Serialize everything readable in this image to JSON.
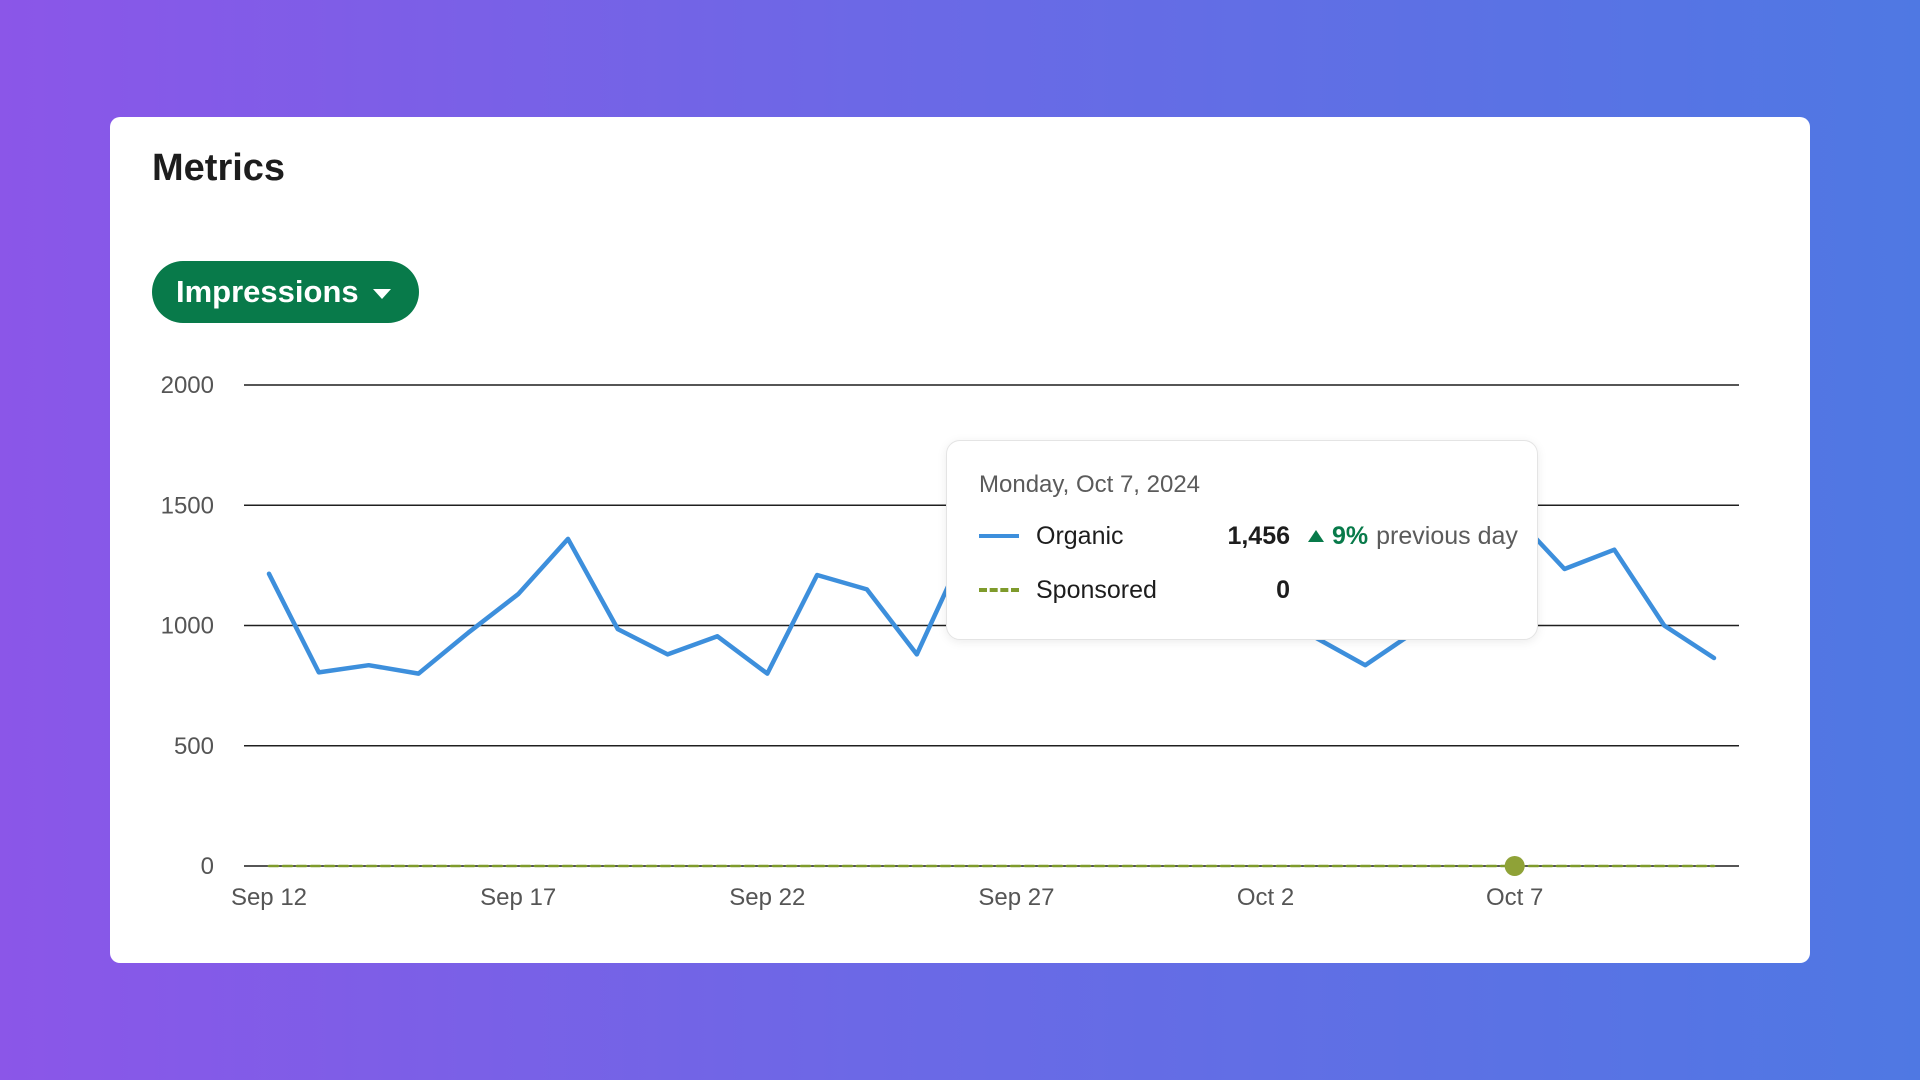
{
  "card": {
    "title": "Metrics",
    "metric_selector": {
      "label": "Impressions",
      "icon": "chevron-down-icon"
    }
  },
  "tooltip": {
    "date": "Monday, Oct 7, 2024",
    "rows": [
      {
        "name": "Organic",
        "value": "1,456",
        "change": "9%",
        "change_direction": "up",
        "comparison": "previous day"
      },
      {
        "name": "Sponsored",
        "value": "0"
      }
    ]
  },
  "chart_data": {
    "type": "line",
    "x": [
      "Sep 12",
      "Sep 13",
      "Sep 14",
      "Sep 15",
      "Sep 16",
      "Sep 17",
      "Sep 18",
      "Sep 19",
      "Sep 20",
      "Sep 21",
      "Sep 22",
      "Sep 23",
      "Sep 24",
      "Sep 25",
      "Sep 26",
      "Sep 27",
      "Sep 28",
      "Sep 29",
      "Sep 30",
      "Oct 1",
      "Oct 2",
      "Oct 3",
      "Oct 4",
      "Oct 5",
      "Oct 6",
      "Oct 7",
      "Oct 8",
      "Oct 9",
      "Oct 10",
      "Oct 11"
    ],
    "x_tick_labels": [
      "Sep 12",
      "Sep 17",
      "Sep 22",
      "Sep 27",
      "Oct 2",
      "Oct 7"
    ],
    "y_ticks": [
      0,
      500,
      1000,
      1500,
      2000
    ],
    "ylim": [
      0,
      2000
    ],
    "grid": true,
    "highlight_index": 25,
    "series": [
      {
        "name": "Organic",
        "color": "#3d8fdc",
        "style": "solid",
        "values": [
          1215,
          805,
          835,
          800,
          970,
          1130,
          1360,
          985,
          880,
          955,
          800,
          1210,
          1150,
          880,
          1330,
          1345,
          1340,
          1330,
          1320,
          1310,
          1300,
          950,
          835,
          975,
          1335,
          1456,
          1235,
          1315,
          1000,
          865
        ]
      },
      {
        "name": "Sponsored",
        "color": "#7f9b2c",
        "style": "dashed",
        "values": [
          0,
          0,
          0,
          0,
          0,
          0,
          0,
          0,
          0,
          0,
          0,
          0,
          0,
          0,
          0,
          0,
          0,
          0,
          0,
          0,
          0,
          0,
          0,
          0,
          0,
          0,
          0,
          0,
          0,
          0
        ]
      }
    ]
  }
}
